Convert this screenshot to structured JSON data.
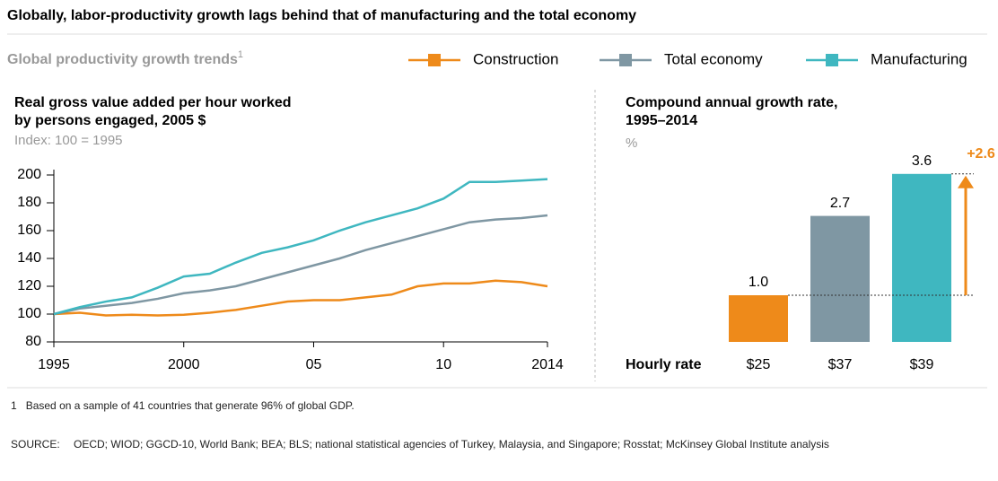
{
  "header": {
    "title": "Globally, labor-productivity growth lags behind that of manufacturing and the total economy",
    "subtitle": "Global productivity growth trends",
    "subtitle_note": "1"
  },
  "chart_data": [
    {
      "type": "line",
      "title": [
        "Real gross value added per hour worked",
        "by persons engaged, 2005 $"
      ],
      "subtitle": "Index: 100 = 1995",
      "x": [
        1995,
        1996,
        1997,
        1998,
        1999,
        2000,
        2001,
        2002,
        2003,
        2004,
        2005,
        2006,
        2007,
        2008,
        2009,
        2010,
        2011,
        2012,
        2013,
        2014
      ],
      "series": [
        {
          "name": "Construction",
          "color": "#ee8a1a",
          "values": [
            100,
            101,
            99,
            99.5,
            99,
            99.5,
            101,
            103,
            106,
            109,
            110,
            110,
            112,
            114,
            120,
            122,
            122,
            124,
            123,
            120
          ]
        },
        {
          "name": "Total economy",
          "color": "#7f97a3",
          "values": [
            100,
            104,
            106,
            108,
            111,
            115,
            117,
            120,
            125,
            130,
            135,
            140,
            146,
            151,
            156,
            161,
            166,
            168,
            169,
            171
          ]
        },
        {
          "name": "Manufacturing",
          "color": "#3fb7c0",
          "values": [
            100,
            105,
            109,
            112,
            119,
            127,
            129,
            137,
            144,
            148,
            153,
            160,
            166,
            171,
            176,
            183,
            195,
            195,
            196,
            197
          ]
        }
      ],
      "xlim": [
        1995,
        2014
      ],
      "xticks": [
        1995,
        2000,
        {
          "value": 2005,
          "label": "05"
        },
        {
          "value": 2010,
          "label": "10"
        },
        2014
      ],
      "ylim": [
        80,
        200
      ],
      "yticks": [
        80,
        100,
        120,
        140,
        160,
        180,
        200
      ]
    },
    {
      "type": "bar",
      "title": [
        "Compound annual growth rate,",
        "1995–2014"
      ],
      "unit": "%",
      "category_label": "Hourly rate",
      "categories": [
        "$25",
        "$37",
        "$39"
      ],
      "values": [
        1.0,
        2.7,
        3.6
      ],
      "value_labels": [
        "1.0",
        "2.7",
        "3.6"
      ],
      "colors": [
        "#ee8a1a",
        "#7f97a3",
        "#3fb7c0"
      ],
      "annotation": {
        "text": "+2.6",
        "value": 2.6,
        "color": "#ee8a1a"
      }
    }
  ],
  "footnote": {
    "number": "1",
    "text": "Based on a sample of 41 countries that generate 96% of global GDP."
  },
  "source": {
    "label": "SOURCE:",
    "text": "OECD; WIOD; GGCD-10, World Bank; BEA; BLS; national statistical agencies of Turkey, Malaysia, and Singapore; Rosstat; McKinsey Global Institute analysis"
  }
}
